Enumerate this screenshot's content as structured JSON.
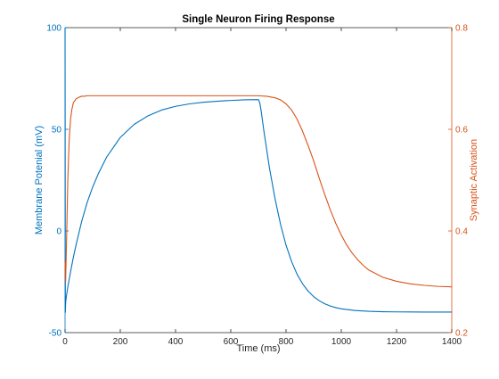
{
  "chart_data": {
    "type": "line",
    "title": "Single Neuron Firing Response",
    "xlabel": "Time (ms)",
    "ylabel_left": "Membrane Potenial (mV)",
    "ylabel_right": "Synaptic Activation",
    "xlim": [
      0,
      1400
    ],
    "ylim_left": [
      -50,
      100
    ],
    "ylim_right": [
      0.2,
      0.8
    ],
    "x_ticks": [
      0,
      200,
      400,
      600,
      800,
      1000,
      1200,
      1400
    ],
    "y_ticks_left": [
      -50,
      0,
      50,
      100
    ],
    "y_ticks_right": [
      0.2,
      0.4,
      0.6,
      0.8
    ],
    "grid": false,
    "legend": "none",
    "colors": {
      "left_axis": "#0072BD",
      "right_axis": "#D95319",
      "box": "#262626"
    },
    "series": [
      {
        "axis": "left",
        "color": "#0072BD",
        "x": [
          0,
          1,
          2,
          3,
          5,
          10,
          20,
          30,
          40,
          60,
          80,
          100,
          120,
          150,
          200,
          250,
          300,
          350,
          400,
          450,
          500,
          550,
          600,
          650,
          699,
          700,
          705,
          710,
          720,
          740,
          760,
          780,
          800,
          820,
          840,
          860,
          880,
          900,
          920,
          940,
          960,
          980,
          1000,
          1050,
          1100,
          1150,
          1200,
          1250,
          1300,
          1400
        ],
        "values": [
          100,
          -40,
          -36,
          -34,
          -32,
          -27.6,
          -20,
          -13,
          -6.8,
          4.6,
          14,
          21.6,
          28,
          36.2,
          46,
          52.4,
          56.6,
          59.5,
          61.3,
          62.5,
          63.3,
          63.8,
          64.2,
          64.5,
          64.6,
          64.6,
          63,
          59,
          49,
          31,
          16,
          3.3,
          -7,
          -15,
          -21.3,
          -26,
          -29.6,
          -32.3,
          -34.3,
          -35.8,
          -36.9,
          -37.7,
          -38.3,
          -39.1,
          -39.5,
          -39.7,
          -39.8,
          -39.85,
          -39.9,
          -39.9
        ]
      },
      {
        "axis": "right",
        "color": "#D95319",
        "x": [
          0,
          2,
          5,
          10,
          15,
          20,
          25,
          30,
          40,
          50,
          60,
          70,
          80,
          100,
          150,
          200,
          300,
          400,
          500,
          600,
          700,
          730,
          760,
          780,
          800,
          820,
          840,
          860,
          880,
          900,
          920,
          940,
          960,
          980,
          1000,
          1020,
          1040,
          1060,
          1080,
          1100,
          1150,
          1200,
          1250,
          1300,
          1350,
          1400
        ],
        "values": [
          0.34,
          0.3,
          0.37,
          0.5,
          0.58,
          0.62,
          0.64,
          0.652,
          0.66,
          0.663,
          0.665,
          0.665,
          0.666,
          0.666,
          0.666,
          0.666,
          0.666,
          0.666,
          0.666,
          0.666,
          0.666,
          0.665,
          0.662,
          0.658,
          0.65,
          0.638,
          0.62,
          0.596,
          0.568,
          0.538,
          0.504,
          0.472,
          0.442,
          0.415,
          0.392,
          0.372,
          0.356,
          0.343,
          0.332,
          0.323,
          0.309,
          0.301,
          0.296,
          0.293,
          0.291,
          0.29
        ]
      }
    ]
  }
}
